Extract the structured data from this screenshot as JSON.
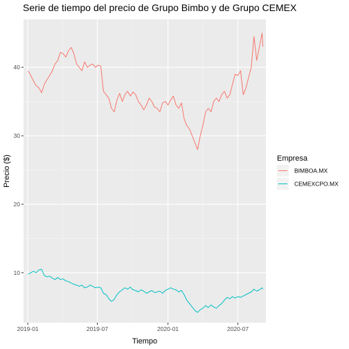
{
  "chart_data": {
    "type": "line",
    "title": "Serie de tiempo del precio de Grupo Bimbo y de Grupo CEMEX",
    "xlabel": "Tiempo",
    "ylabel": "Precio ($)",
    "x_ticks": [
      "2019-01",
      "2019-07",
      "2020-01",
      "2020-07"
    ],
    "y_ticks": [
      10,
      20,
      30,
      40
    ],
    "xlim": [
      "2018-12-21",
      "2020-09-12"
    ],
    "ylim": [
      2.7,
      47.0
    ],
    "grid": true,
    "legend": {
      "title": "Empresa",
      "position": "right"
    },
    "series": [
      {
        "name": "BIMBOA.MX",
        "color": "#F8766D",
        "points": [
          [
            "2019-01-02",
            39.5
          ],
          [
            "2019-01-09",
            38.8
          ],
          [
            "2019-01-16",
            38.0
          ],
          [
            "2019-01-23",
            37.3
          ],
          [
            "2019-01-30",
            37.0
          ],
          [
            "2019-02-06",
            36.3
          ],
          [
            "2019-02-13",
            37.5
          ],
          [
            "2019-02-20",
            38.2
          ],
          [
            "2019-02-27",
            38.8
          ],
          [
            "2019-03-06",
            39.5
          ],
          [
            "2019-03-13",
            40.5
          ],
          [
            "2019-03-20",
            41.0
          ],
          [
            "2019-03-27",
            42.2
          ],
          [
            "2019-04-03",
            42.0
          ],
          [
            "2019-04-10",
            41.5
          ],
          [
            "2019-04-17",
            42.4
          ],
          [
            "2019-04-24",
            42.9
          ],
          [
            "2019-05-01",
            42.0
          ],
          [
            "2019-05-08",
            40.5
          ],
          [
            "2019-05-15",
            40.0
          ],
          [
            "2019-05-22",
            39.5
          ],
          [
            "2019-05-29",
            40.8
          ],
          [
            "2019-06-05",
            40.0
          ],
          [
            "2019-06-12",
            40.3
          ],
          [
            "2019-06-19",
            40.5
          ],
          [
            "2019-06-26",
            40.0
          ],
          [
            "2019-07-03",
            40.3
          ],
          [
            "2019-07-10",
            40.2
          ],
          [
            "2019-07-17",
            36.5
          ],
          [
            "2019-07-24",
            36.0
          ],
          [
            "2019-07-31",
            35.5
          ],
          [
            "2019-08-07",
            34.0
          ],
          [
            "2019-08-14",
            33.5
          ],
          [
            "2019-08-21",
            35.2
          ],
          [
            "2019-08-28",
            36.2
          ],
          [
            "2019-09-04",
            35.0
          ],
          [
            "2019-09-11",
            36.0
          ],
          [
            "2019-09-18",
            36.5
          ],
          [
            "2019-09-25",
            35.8
          ],
          [
            "2019-10-02",
            36.4
          ],
          [
            "2019-10-09",
            36.0
          ],
          [
            "2019-10-16",
            35.0
          ],
          [
            "2019-10-23",
            34.5
          ],
          [
            "2019-10-30",
            33.8
          ],
          [
            "2019-11-06",
            34.5
          ],
          [
            "2019-11-13",
            35.5
          ],
          [
            "2019-11-20",
            35.0
          ],
          [
            "2019-11-27",
            34.2
          ],
          [
            "2019-12-04",
            34.0
          ],
          [
            "2019-12-11",
            33.5
          ],
          [
            "2019-12-18",
            34.8
          ],
          [
            "2019-12-25",
            35.0
          ],
          [
            "2020-01-01",
            34.5
          ],
          [
            "2020-01-08",
            35.2
          ],
          [
            "2020-01-15",
            35.8
          ],
          [
            "2020-01-22",
            34.5
          ],
          [
            "2020-01-29",
            34.0
          ],
          [
            "2020-02-05",
            34.8
          ],
          [
            "2020-02-12",
            32.5
          ],
          [
            "2020-02-19",
            31.5
          ],
          [
            "2020-02-26",
            31.0
          ],
          [
            "2020-03-04",
            30.0
          ],
          [
            "2020-03-11",
            29.0
          ],
          [
            "2020-03-18",
            28.0
          ],
          [
            "2020-03-25",
            30.0
          ],
          [
            "2020-04-01",
            31.5
          ],
          [
            "2020-04-08",
            33.5
          ],
          [
            "2020-04-15",
            34.0
          ],
          [
            "2020-04-22",
            33.5
          ],
          [
            "2020-04-29",
            35.0
          ],
          [
            "2020-05-06",
            35.5
          ],
          [
            "2020-05-13",
            35.0
          ],
          [
            "2020-05-20",
            36.0
          ],
          [
            "2020-05-27",
            36.5
          ],
          [
            "2020-06-03",
            35.5
          ],
          [
            "2020-06-10",
            36.0
          ],
          [
            "2020-06-17",
            37.5
          ],
          [
            "2020-06-24",
            39.0
          ],
          [
            "2020-07-01",
            38.8
          ],
          [
            "2020-07-08",
            39.5
          ],
          [
            "2020-07-15",
            36.0
          ],
          [
            "2020-07-22",
            37.0
          ],
          [
            "2020-07-29",
            38.5
          ],
          [
            "2020-08-05",
            40.0
          ],
          [
            "2020-08-12",
            44.5
          ],
          [
            "2020-08-19",
            41.0
          ],
          [
            "2020-08-26",
            43.0
          ],
          [
            "2020-09-02",
            45.0
          ],
          [
            "2020-09-04",
            43.0
          ]
        ]
      },
      {
        "name": "CEMEXCPO.MX",
        "color": "#00BFC4",
        "points": [
          [
            "2019-01-02",
            9.8
          ],
          [
            "2019-01-09",
            10.0
          ],
          [
            "2019-01-16",
            10.2
          ],
          [
            "2019-01-23",
            10.0
          ],
          [
            "2019-01-30",
            10.4
          ],
          [
            "2019-02-06",
            10.5
          ],
          [
            "2019-02-13",
            9.6
          ],
          [
            "2019-02-20",
            9.4
          ],
          [
            "2019-02-27",
            9.5
          ],
          [
            "2019-03-06",
            9.2
          ],
          [
            "2019-03-13",
            9.0
          ],
          [
            "2019-03-20",
            9.3
          ],
          [
            "2019-03-27",
            9.0
          ],
          [
            "2019-04-03",
            9.1
          ],
          [
            "2019-04-10",
            8.8
          ],
          [
            "2019-04-17",
            8.7
          ],
          [
            "2019-04-24",
            8.5
          ],
          [
            "2019-05-01",
            8.3
          ],
          [
            "2019-05-08",
            8.2
          ],
          [
            "2019-05-15",
            8.0
          ],
          [
            "2019-05-22",
            8.2
          ],
          [
            "2019-05-29",
            7.8
          ],
          [
            "2019-06-05",
            7.9
          ],
          [
            "2019-06-12",
            8.2
          ],
          [
            "2019-06-19",
            8.0
          ],
          [
            "2019-06-26",
            7.8
          ],
          [
            "2019-07-03",
            7.9
          ],
          [
            "2019-07-10",
            7.8
          ],
          [
            "2019-07-17",
            7.0
          ],
          [
            "2019-07-24",
            6.8
          ],
          [
            "2019-07-31",
            6.2
          ],
          [
            "2019-08-07",
            5.8
          ],
          [
            "2019-08-14",
            6.1
          ],
          [
            "2019-08-21",
            6.8
          ],
          [
            "2019-08-28",
            7.2
          ],
          [
            "2019-09-04",
            7.5
          ],
          [
            "2019-09-11",
            7.8
          ],
          [
            "2019-09-18",
            7.6
          ],
          [
            "2019-09-25",
            7.9
          ],
          [
            "2019-10-02",
            7.5
          ],
          [
            "2019-10-09",
            7.4
          ],
          [
            "2019-10-16",
            7.2
          ],
          [
            "2019-10-23",
            7.5
          ],
          [
            "2019-10-30",
            7.3
          ],
          [
            "2019-11-06",
            7.0
          ],
          [
            "2019-11-13",
            7.2
          ],
          [
            "2019-11-20",
            7.4
          ],
          [
            "2019-11-27",
            7.1
          ],
          [
            "2019-12-04",
            7.2
          ],
          [
            "2019-12-11",
            7.3
          ],
          [
            "2019-12-18",
            7.0
          ],
          [
            "2019-12-25",
            7.4
          ],
          [
            "2020-01-01",
            7.6
          ],
          [
            "2020-01-08",
            7.8
          ],
          [
            "2020-01-15",
            7.6
          ],
          [
            "2020-01-22",
            7.5
          ],
          [
            "2020-01-29",
            7.2
          ],
          [
            "2020-02-05",
            7.4
          ],
          [
            "2020-02-12",
            6.8
          ],
          [
            "2020-02-19",
            6.0
          ],
          [
            "2020-02-26",
            5.5
          ],
          [
            "2020-03-04",
            5.0
          ],
          [
            "2020-03-11",
            4.5
          ],
          [
            "2020-03-18",
            4.2
          ],
          [
            "2020-03-25",
            4.6
          ],
          [
            "2020-04-01",
            4.8
          ],
          [
            "2020-04-08",
            5.2
          ],
          [
            "2020-04-15",
            4.9
          ],
          [
            "2020-04-22",
            5.3
          ],
          [
            "2020-04-29",
            5.0
          ],
          [
            "2020-05-06",
            4.8
          ],
          [
            "2020-05-13",
            5.2
          ],
          [
            "2020-05-20",
            5.5
          ],
          [
            "2020-05-27",
            6.0
          ],
          [
            "2020-06-03",
            6.4
          ],
          [
            "2020-06-10",
            6.2
          ],
          [
            "2020-06-17",
            6.5
          ],
          [
            "2020-06-24",
            6.3
          ],
          [
            "2020-07-01",
            6.5
          ],
          [
            "2020-07-08",
            6.4
          ],
          [
            "2020-07-15",
            6.6
          ],
          [
            "2020-07-22",
            6.8
          ],
          [
            "2020-07-29",
            7.0
          ],
          [
            "2020-08-05",
            7.2
          ],
          [
            "2020-08-12",
            7.6
          ],
          [
            "2020-08-19",
            7.3
          ],
          [
            "2020-08-26",
            7.5
          ],
          [
            "2020-09-02",
            7.8
          ],
          [
            "2020-09-04",
            7.6
          ]
        ]
      }
    ]
  }
}
